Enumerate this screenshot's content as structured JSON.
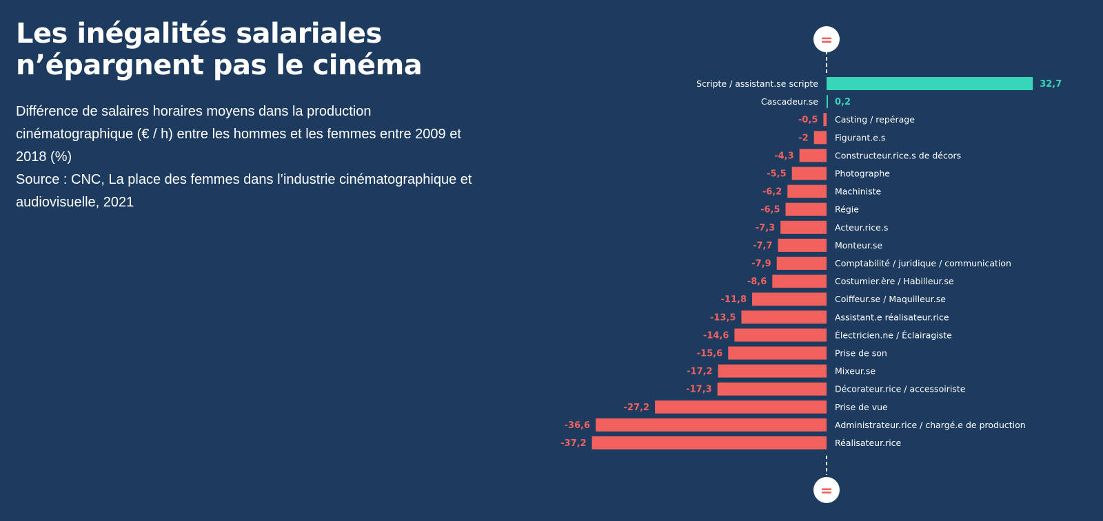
{
  "header": {
    "title": "Les inégalités salariales n’épargnent pas le cinéma",
    "subtitle_lines": [
      "Différence de salaires horaires moyens dans la production",
      "cinématographique (€ / h) entre les hommes et les femmes entre 2009 et",
      "2018 (%)",
      "Source : CNC, La place des femmes dans l’industrie cinématographique et",
      "audiovisuelle, 2021"
    ]
  },
  "colors": {
    "background": "#1d3a5f",
    "positive": "#36d6b8",
    "negative": "#f1625e",
    "marker_bg": "#ffffff",
    "marker_fg": "#f1625e"
  },
  "markers": {
    "top_symbol": "=",
    "bottom_symbol": "="
  },
  "chart_data": {
    "type": "bar",
    "orientation": "horizontal",
    "baseline": 0,
    "categories": [
      "Scripte / assistant.se scripte",
      "Cascadeur.se",
      "Casting / repérage",
      "Figurant.e.s",
      "Constructeur.rice.s de décors",
      "Photographe",
      "Machiniste",
      "Régie",
      "Acteur.rice.s",
      "Monteur.se",
      "Comptabilité / juridique / communication",
      "Costumier.ère / Habilleur.se",
      "Coiffeur.se / Maquilleur.se",
      "Assistant.e réalisateur.rice",
      "Électricien.ne / Éclairagiste",
      "Prise de son",
      "Mixeur.se",
      "Décorateur.rice / accessoiriste",
      "Prise de vue",
      "Administrateur.rice / chargé.e de production",
      "Réalisateur.rice"
    ],
    "values": [
      32.7,
      0.2,
      -0.5,
      -2,
      -4.3,
      -5.5,
      -6.2,
      -6.5,
      -7.3,
      -7.7,
      -7.9,
      -8.6,
      -11.8,
      -13.5,
      -14.6,
      -15.6,
      -17.2,
      -17.3,
      -27.2,
      -36.6,
      -37.2
    ],
    "value_labels": [
      "32,7",
      "0,2",
      "-0,5",
      "-2",
      "-4,3",
      "-5,5",
      "-6,2",
      "-6,5",
      "-7,3",
      "-7,7",
      "-7,9",
      "-8,6",
      "-11,8",
      "-13,5",
      "-14,6",
      "-15,6",
      "-17,2",
      "-17,3",
      "-27,2",
      "-36,6",
      "-37,2"
    ],
    "grid": false,
    "legend": "none"
  }
}
